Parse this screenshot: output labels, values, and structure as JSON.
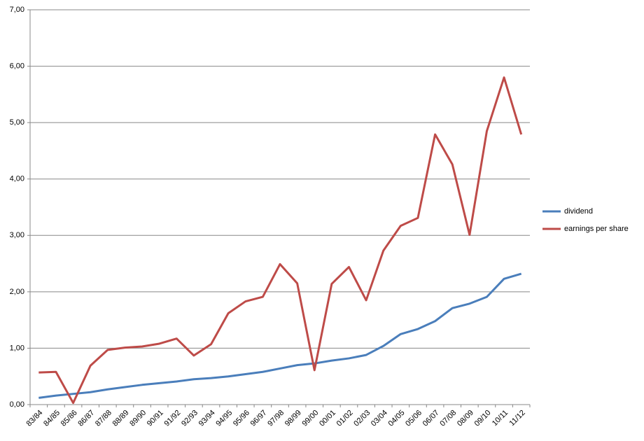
{
  "chart_data": {
    "type": "line",
    "categories": [
      "83/84",
      "84/85",
      "85/86",
      "86/87",
      "87/88",
      "88/89",
      "89/90",
      "90/91",
      "91/92",
      "92/93",
      "93/94",
      "94/95",
      "95/96",
      "96/97",
      "97/98",
      "98/99",
      "99/00",
      "00/01",
      "01/02",
      "02/03",
      "03/04",
      "04/05",
      "05/06",
      "06/07",
      "07/08",
      "08/09",
      "09/10",
      "10/11",
      "11/12"
    ],
    "series": [
      {
        "name": "dividend",
        "color": "#4a7ebb",
        "values": [
          0.12,
          0.16,
          0.19,
          0.22,
          0.27,
          0.31,
          0.35,
          0.38,
          0.41,
          0.45,
          0.47,
          0.5,
          0.54,
          0.58,
          0.64,
          0.7,
          0.73,
          0.78,
          0.82,
          0.88,
          1.04,
          1.25,
          1.34,
          1.48,
          1.71,
          1.79,
          1.91,
          2.23,
          2.32
        ]
      },
      {
        "name": "earnings per share",
        "color": "#be4b48",
        "values": [
          0.57,
          0.58,
          0.03,
          0.69,
          0.97,
          1.01,
          1.03,
          1.08,
          1.17,
          0.87,
          1.07,
          1.62,
          1.83,
          1.91,
          2.49,
          2.15,
          0.61,
          2.14,
          2.44,
          1.85,
          2.73,
          3.17,
          3.31,
          4.79,
          4.26,
          3.01,
          4.85,
          5.8,
          4.79
        ]
      }
    ],
    "ylim": [
      0,
      7
    ],
    "yticks": [
      {
        "value": 0,
        "label": "0,00"
      },
      {
        "value": 1,
        "label": "1,00"
      },
      {
        "value": 2,
        "label": "2,00"
      },
      {
        "value": 3,
        "label": "3,00"
      },
      {
        "value": 4,
        "label": "4,00"
      },
      {
        "value": 5,
        "label": "5,00"
      },
      {
        "value": 6,
        "label": "6,00"
      },
      {
        "value": 7,
        "label": "7,00"
      }
    ],
    "grid": true,
    "legend": "right"
  }
}
